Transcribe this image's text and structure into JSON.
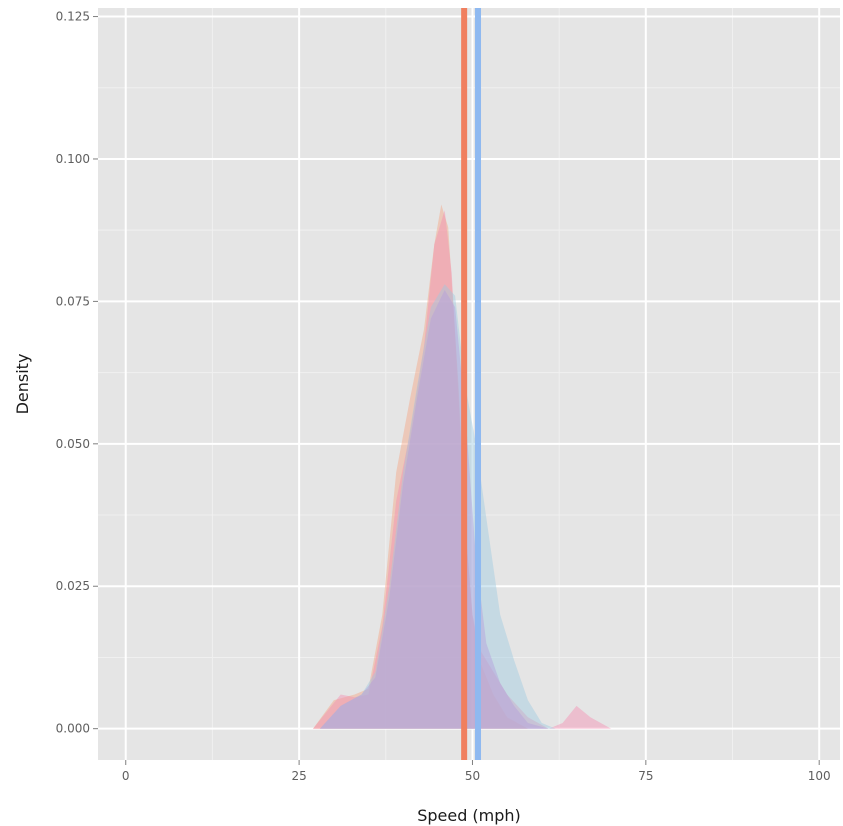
{
  "chart_data": {
    "type": "area",
    "title": "",
    "xlabel": "Speed (mph)",
    "ylabel": "Density",
    "xlim": [
      -4,
      103
    ],
    "ylim": [
      -0.0055,
      0.1265
    ],
    "x_ticks": [
      0,
      25,
      50,
      75,
      100
    ],
    "x_tick_labels": [
      "0",
      "25",
      "50",
      "75",
      "100"
    ],
    "y_ticks": [
      0.0,
      0.025,
      0.05,
      0.075,
      0.1,
      0.125
    ],
    "y_tick_labels": [
      "0.000",
      "0.025",
      "0.050",
      "0.075",
      "0.100",
      "0.125"
    ],
    "grid": true,
    "legend": "none",
    "background": "#e5e5e5",
    "series": [
      {
        "color": "#f4a582",
        "points": [
          [
            27,
            0
          ],
          [
            30,
            0.005
          ],
          [
            33,
            0.006
          ],
          [
            35,
            0.007
          ],
          [
            37,
            0.02
          ],
          [
            39,
            0.045
          ],
          [
            41,
            0.058
          ],
          [
            43,
            0.07
          ],
          [
            44.5,
            0.085
          ],
          [
            45.5,
            0.092
          ],
          [
            46.5,
            0.088
          ],
          [
            48,
            0.06
          ],
          [
            49,
            0.035
          ],
          [
            50,
            0.02
          ],
          [
            51,
            0.012
          ],
          [
            53,
            0.006
          ],
          [
            55,
            0.002
          ],
          [
            58,
            0
          ]
        ]
      },
      {
        "color": "#f48fb1",
        "points": [
          [
            27,
            0
          ],
          [
            29,
            0.003
          ],
          [
            31,
            0.006
          ],
          [
            33,
            0.0055
          ],
          [
            35,
            0.006
          ],
          [
            37,
            0.018
          ],
          [
            39,
            0.04
          ],
          [
            41,
            0.052
          ],
          [
            43,
            0.067
          ],
          [
            44.5,
            0.085
          ],
          [
            46,
            0.091
          ],
          [
            47,
            0.08
          ],
          [
            48,
            0.058
          ],
          [
            49,
            0.035
          ],
          [
            50,
            0.02
          ],
          [
            51,
            0.014
          ],
          [
            53,
            0.01
          ],
          [
            55,
            0.006
          ],
          [
            58,
            0.002
          ],
          [
            61,
            0
          ],
          [
            63,
            0.001
          ],
          [
            65,
            0.004
          ],
          [
            67,
            0.002
          ],
          [
            70,
            0
          ]
        ]
      },
      {
        "color": "#9ecae1",
        "points": [
          [
            28,
            0
          ],
          [
            31,
            0.004
          ],
          [
            34,
            0.006
          ],
          [
            36,
            0.01
          ],
          [
            38,
            0.025
          ],
          [
            40,
            0.045
          ],
          [
            42,
            0.06
          ],
          [
            44,
            0.074
          ],
          [
            46,
            0.078
          ],
          [
            47.5,
            0.076
          ],
          [
            49,
            0.06
          ],
          [
            50.5,
            0.05
          ],
          [
            52,
            0.037
          ],
          [
            54,
            0.02
          ],
          [
            56,
            0.012
          ],
          [
            58,
            0.005
          ],
          [
            60,
            0.001
          ],
          [
            62,
            0
          ]
        ]
      },
      {
        "color": "#b39ddb",
        "points": [
          [
            28,
            0
          ],
          [
            31,
            0.004
          ],
          [
            34,
            0.006
          ],
          [
            36,
            0.009
          ],
          [
            38,
            0.023
          ],
          [
            40,
            0.043
          ],
          [
            42,
            0.058
          ],
          [
            44,
            0.072
          ],
          [
            46,
            0.077
          ],
          [
            47.5,
            0.074
          ],
          [
            49,
            0.055
          ],
          [
            50.5,
            0.03
          ],
          [
            52,
            0.015
          ],
          [
            54,
            0.008
          ],
          [
            56,
            0.004
          ],
          [
            58,
            0.001
          ],
          [
            61,
            0
          ]
        ]
      }
    ],
    "vlines": [
      {
        "x": 48.8,
        "color": "#f07f5f"
      },
      {
        "x": 50.8,
        "color": "#8fb9f0"
      }
    ]
  }
}
